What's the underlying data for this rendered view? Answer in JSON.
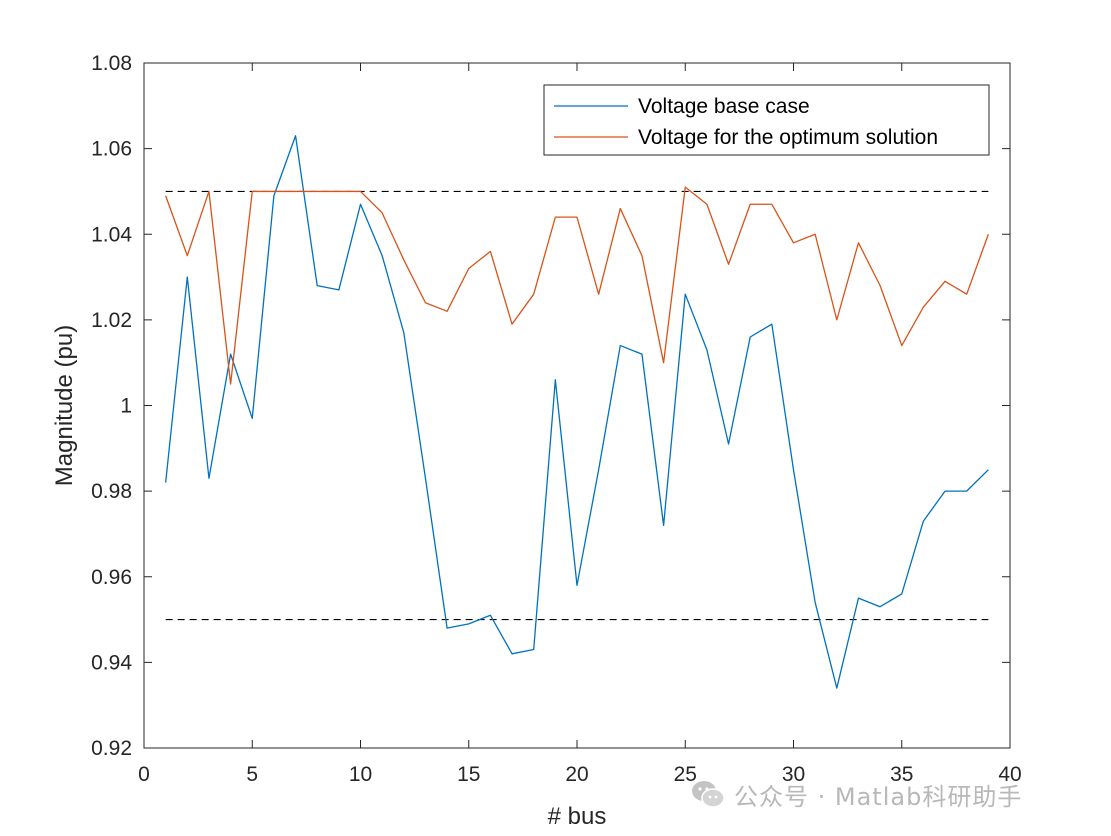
{
  "chart_data": {
    "type": "line",
    "title": "",
    "xlabel": "# bus",
    "ylabel": "Magnitude (pu)",
    "xlim": [
      0,
      40
    ],
    "ylim": [
      0.92,
      1.08
    ],
    "xticks": [
      "0",
      "5",
      "10",
      "15",
      "20",
      "25",
      "30",
      "35",
      "40"
    ],
    "yticks": [
      "0.92",
      "0.94",
      "0.96",
      "0.98",
      "1",
      "1.02",
      "1.04",
      "1.06",
      "1.08"
    ],
    "grid": false,
    "legend_position": "top-right",
    "x": [
      1,
      2,
      3,
      4,
      5,
      6,
      7,
      8,
      9,
      10,
      11,
      12,
      13,
      14,
      15,
      16,
      17,
      18,
      19,
      20,
      21,
      22,
      23,
      24,
      25,
      26,
      27,
      28,
      29,
      30,
      31,
      32,
      33,
      34,
      35,
      36,
      37,
      38,
      39
    ],
    "series": [
      {
        "name": "Voltage base case",
        "color": "#0072BD",
        "values": [
          0.982,
          1.03,
          0.983,
          1.012,
          0.997,
          1.049,
          1.063,
          1.028,
          1.027,
          1.047,
          1.035,
          1.017,
          0.983,
          0.948,
          0.949,
          0.951,
          0.942,
          0.943,
          1.006,
          0.958,
          0.985,
          1.014,
          1.012,
          0.972,
          1.026,
          1.013,
          0.991,
          1.016,
          1.019,
          0.985,
          0.954,
          0.934,
          0.955,
          0.953,
          0.956,
          0.973,
          0.98,
          0.98,
          0.985
        ]
      },
      {
        "name": "Voltage for the optimum solution",
        "color": "#D95319",
        "values": [
          1.049,
          1.035,
          1.05,
          1.005,
          1.05,
          1.05,
          1.05,
          1.05,
          1.05,
          1.05,
          1.045,
          1.034,
          1.024,
          1.022,
          1.032,
          1.036,
          1.019,
          1.026,
          1.044,
          1.044,
          1.026,
          1.046,
          1.035,
          1.01,
          1.051,
          1.047,
          1.033,
          1.047,
          1.047,
          1.038,
          1.04,
          1.02,
          1.038,
          1.028,
          1.014,
          1.023,
          1.029,
          1.026,
          1.04
        ]
      }
    ],
    "reference_lines": [
      {
        "y": 1.05,
        "x_range": [
          1,
          39
        ],
        "style": "dashed",
        "color": "#000000"
      },
      {
        "y": 0.95,
        "x_range": [
          1,
          39
        ],
        "style": "dashed",
        "color": "#000000"
      }
    ]
  },
  "watermark": {
    "icon": "wechat-icon",
    "text": "公众号 · Matlab科研助手",
    "color": "#b8b8b8"
  }
}
